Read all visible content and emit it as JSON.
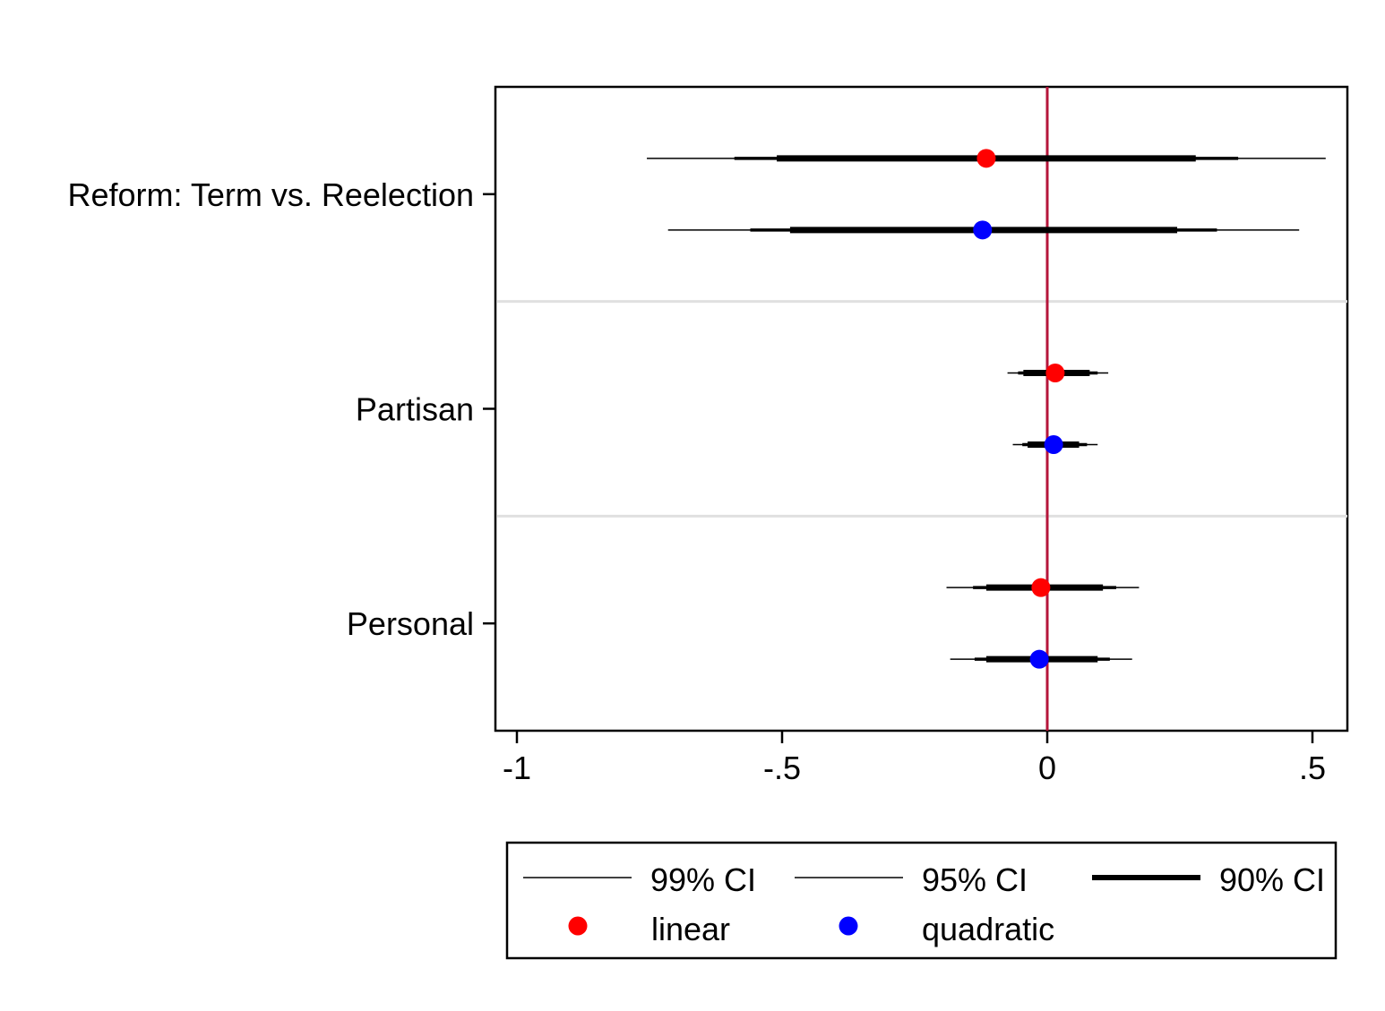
{
  "chart_data": {
    "type": "scatter",
    "subtype": "coefficient-plot",
    "title": "",
    "xlabel": "",
    "ylabel": "",
    "xlim": [
      -1.04,
      0.57
    ],
    "x_ticks": [
      -1,
      -0.5,
      0,
      0.5
    ],
    "x_tick_labels": [
      "-1",
      "-.5",
      "0",
      ".5"
    ],
    "reference_line_x": 0,
    "grid": false,
    "legend_position": "bottom",
    "categories": [
      "Reform: Term vs. Reelection",
      "Partisan",
      "Personal"
    ],
    "series": [
      {
        "name": "linear",
        "color": "#ff0000",
        "estimates": [
          -0.115,
          0.015,
          -0.012
        ],
        "ci99": [
          [
            -0.755,
            0.525
          ],
          [
            -0.075,
            0.115
          ],
          [
            -0.19,
            0.173
          ]
        ],
        "ci95": [
          [
            -0.59,
            0.36
          ],
          [
            -0.055,
            0.095
          ],
          [
            -0.14,
            0.13
          ]
        ],
        "ci90": [
          [
            -0.51,
            0.28
          ],
          [
            -0.045,
            0.08
          ],
          [
            -0.115,
            0.105
          ]
        ]
      },
      {
        "name": "quadratic",
        "color": "#0000ff",
        "estimates": [
          -0.122,
          0.012,
          -0.015
        ],
        "ci99": [
          [
            -0.715,
            0.475
          ],
          [
            -0.065,
            0.095
          ],
          [
            -0.183,
            0.16
          ]
        ],
        "ci95": [
          [
            -0.56,
            0.32
          ],
          [
            -0.047,
            0.075
          ],
          [
            -0.137,
            0.118
          ]
        ],
        "ci90": [
          [
            -0.485,
            0.245
          ],
          [
            -0.037,
            0.06
          ],
          [
            -0.115,
            0.095
          ]
        ]
      }
    ],
    "legend": {
      "ci_labels": [
        "99% CI",
        "95% CI",
        "90% CI"
      ],
      "marker_labels": [
        "linear",
        "quadratic"
      ]
    }
  },
  "colors": {
    "reference_line": "#b5153a",
    "separator": "#e0e0e0",
    "axis": "#000000"
  }
}
